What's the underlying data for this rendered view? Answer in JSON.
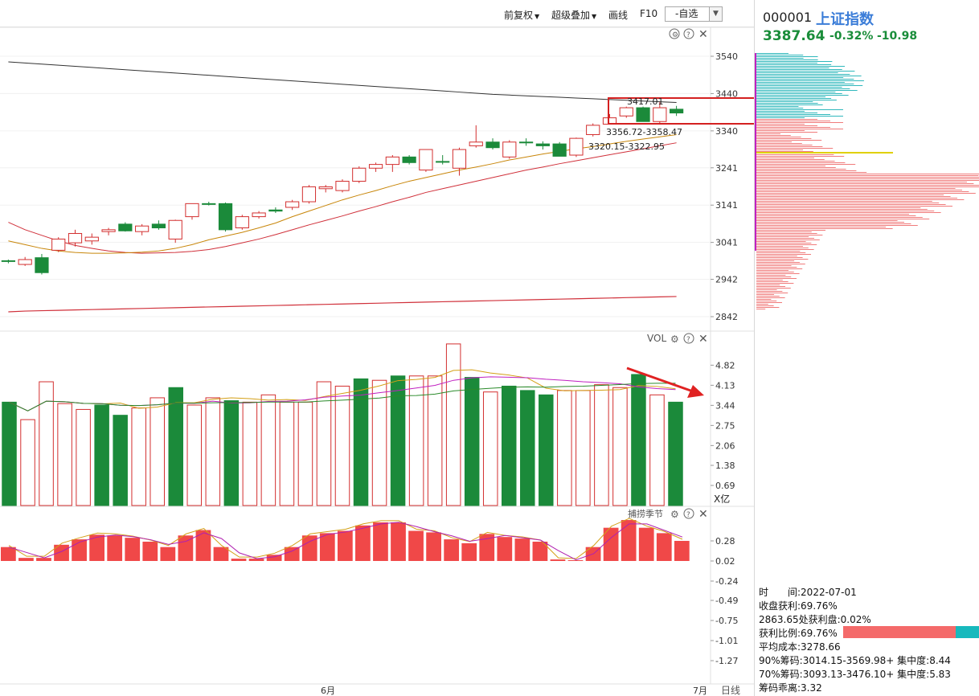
{
  "toolbar": {
    "restore": "前复权",
    "overlay": "超级叠加",
    "draw": "画线",
    "f10": "F10",
    "watchlist": "-自选"
  },
  "stock": {
    "code": "000001",
    "name": "上证指数",
    "price": "3387.64",
    "pct": "-0.32%",
    "change": "-10.98"
  },
  "panels": {
    "vol_title": "VOL",
    "vol_unit": "X亿",
    "osc_title": "捕捞季节",
    "period": "日线"
  },
  "chart_data": [
    {
      "type": "candlestick",
      "y_ticks": [
        "3540",
        "3440",
        "3340",
        "3241",
        "3141",
        "3041",
        "2942",
        "2842"
      ],
      "annotations": [
        "3417.01",
        "3356.72-3358.47",
        "3320.15-3322.95"
      ],
      "x_labels": [
        "6月",
        "7月"
      ],
      "ohlc": [
        [
          2990,
          2995,
          2985,
          2992,
          "g"
        ],
        [
          2982,
          3002,
          2978,
          2995,
          "r"
        ],
        [
          3000,
          3010,
          2955,
          2960,
          "g"
        ],
        [
          3020,
          3055,
          3015,
          3050,
          "r"
        ],
        [
          3040,
          3075,
          3030,
          3065,
          "r"
        ],
        [
          3045,
          3065,
          3035,
          3055,
          "r"
        ],
        [
          3070,
          3080,
          3060,
          3075,
          "r"
        ],
        [
          3090,
          3095,
          3070,
          3072,
          "g"
        ],
        [
          3070,
          3090,
          3060,
          3085,
          "r"
        ],
        [
          3090,
          3100,
          3075,
          3080,
          "g"
        ],
        [
          3050,
          3102,
          3040,
          3100,
          "r"
        ],
        [
          3110,
          3145,
          3102,
          3145,
          "r"
        ],
        [
          3145,
          3150,
          3140,
          3143,
          "g"
        ],
        [
          3145,
          3148,
          3070,
          3075,
          "g"
        ],
        [
          3080,
          3115,
          3075,
          3110,
          "r"
        ],
        [
          3110,
          3125,
          3105,
          3120,
          "r"
        ],
        [
          3125,
          3135,
          3120,
          3128,
          "g"
        ],
        [
          3135,
          3155,
          3128,
          3150,
          "r"
        ],
        [
          3150,
          3195,
          3145,
          3190,
          "r"
        ],
        [
          3185,
          3195,
          3175,
          3190,
          "r"
        ],
        [
          3180,
          3210,
          3175,
          3205,
          "r"
        ],
        [
          3205,
          3245,
          3200,
          3240,
          "r"
        ],
        [
          3240,
          3255,
          3230,
          3250,
          "r"
        ],
        [
          3250,
          3275,
          3230,
          3270,
          "r"
        ],
        [
          3270,
          3275,
          3250,
          3255,
          "g"
        ],
        [
          3235,
          3290,
          3230,
          3290,
          "r"
        ],
        [
          3258,
          3275,
          3250,
          3258,
          "g"
        ],
        [
          3240,
          3295,
          3220,
          3290,
          "r"
        ],
        [
          3300,
          3355,
          3295,
          3310,
          "r"
        ],
        [
          3310,
          3320,
          3290,
          3295,
          "g"
        ],
        [
          3270,
          3315,
          3265,
          3310,
          "r"
        ],
        [
          3310,
          3320,
          3300,
          3308,
          "g"
        ],
        [
          3305,
          3312,
          3290,
          3300,
          "g"
        ],
        [
          3305,
          3310,
          3272,
          3272,
          "g"
        ],
        [
          3275,
          3322,
          3270,
          3320,
          "r"
        ],
        [
          3330,
          3360,
          3325,
          3355,
          "r"
        ],
        [
          3358,
          3385,
          3357,
          3375,
          "r"
        ],
        [
          3380,
          3405,
          3375,
          3402,
          "r"
        ],
        [
          3402,
          3405,
          3365,
          3365,
          "g"
        ],
        [
          3365,
          3417,
          3360,
          3402,
          "r"
        ],
        [
          3398,
          3407,
          3380,
          3388,
          "g"
        ]
      ],
      "ma5": [
        3045,
        3035,
        3025,
        3018,
        3014,
        3012,
        3012,
        3013,
        3015,
        3018,
        3025,
        3035,
        3048,
        3058,
        3068,
        3080,
        3093,
        3110,
        3125,
        3140,
        3155,
        3168,
        3180,
        3193,
        3205,
        3215,
        3225,
        3235,
        3243,
        3252,
        3262,
        3270,
        3278,
        3285,
        3292,
        3298,
        3305,
        3312,
        3318,
        3324,
        3330
      ],
      "ma10": [
        3095,
        3075,
        3060,
        3045,
        3033,
        3025,
        3018,
        3014,
        3012,
        3013,
        3014,
        3017,
        3022,
        3030,
        3040,
        3050,
        3062,
        3075,
        3088,
        3100,
        3112,
        3125,
        3137,
        3150,
        3162,
        3175,
        3185,
        3195,
        3205,
        3215,
        3225,
        3235,
        3243,
        3252,
        3260,
        3268,
        3276,
        3284,
        3292,
        3300,
        3308
      ],
      "ma60": [
        2855,
        2857,
        2858,
        2859,
        2860,
        2861,
        2862,
        2863,
        2864,
        2865,
        2866,
        2867,
        2868,
        2869,
        2870,
        2871,
        2872,
        2873,
        2874,
        2875,
        2876,
        2877,
        2878,
        2879,
        2880,
        2881,
        2882,
        2883,
        2884,
        2885,
        2886,
        2887,
        2888,
        2889,
        2890,
        2891,
        2892,
        2893,
        2894,
        2895,
        2896
      ],
      "ma250": [
        3525,
        3522,
        3519,
        3516,
        3513,
        3510,
        3507,
        3504,
        3501,
        3498,
        3495,
        3492,
        3489,
        3486,
        3483,
        3480,
        3477,
        3474,
        3471,
        3468,
        3465,
        3462,
        3459,
        3456,
        3453,
        3450,
        3447,
        3444,
        3441,
        3438,
        3436,
        3434,
        3432,
        3430,
        3428,
        3426,
        3424,
        3422,
        3420,
        3418,
        3416
      ]
    },
    {
      "type": "bar",
      "name": "VOL",
      "y_ticks": [
        "4.82",
        "4.13",
        "3.44",
        "2.75",
        "2.06",
        "1.38",
        "0.69"
      ],
      "values": [
        3.55,
        2.95,
        4.25,
        3.5,
        3.3,
        3.45,
        3.1,
        3.35,
        3.7,
        4.05,
        3.45,
        3.7,
        3.6,
        3.55,
        3.8,
        3.55,
        3.55,
        4.25,
        4.1,
        4.35,
        4.3,
        4.45,
        4.45,
        4.45,
        5.55,
        4.4,
        3.9,
        4.1,
        3.95,
        3.8,
        3.95,
        3.95,
        4.15,
        4.05,
        4.5,
        3.8,
        3.55
      ],
      "colors": [
        "g",
        "r",
        "r",
        "r",
        "r",
        "g",
        "g",
        "r",
        "r",
        "g",
        "r",
        "r",
        "g",
        "r",
        "r",
        "r",
        "r",
        "r",
        "r",
        "g",
        "r",
        "g",
        "r",
        "r",
        "r",
        "g",
        "r",
        "g",
        "g",
        "g",
        "r",
        "r",
        "r",
        "r",
        "g",
        "r",
        "g"
      ]
    },
    {
      "type": "bar",
      "name": "捕捞季节",
      "y_ticks": [
        "0.28",
        "0.02",
        "-0.24",
        "-0.49",
        "-0.75",
        "-1.01",
        "-1.27"
      ],
      "values": [
        0.2,
        0.06,
        0.06,
        0.23,
        0.3,
        0.36,
        0.35,
        0.32,
        0.27,
        0.2,
        0.35,
        0.42,
        0.2,
        0.05,
        0.05,
        0.1,
        0.2,
        0.35,
        0.38,
        0.41,
        0.48,
        0.52,
        0.52,
        0.41,
        0.39,
        0.3,
        0.25,
        0.37,
        0.33,
        0.31,
        0.27,
        0.04,
        0.03,
        0.2,
        0.45,
        0.55,
        0.45,
        0.38,
        0.28
      ]
    }
  ],
  "chip_dist": {
    "info": {
      "time": "时　　间:2022-07-01",
      "close_profit": "收盘获利:69.76%",
      "profit_at": "2863.65处获利盘:0.02%",
      "profit_ratio": "获利比例:69.76%",
      "avg_cost": "平均成本:3278.66",
      "range90": "90%筹码:3014.15-3569.98+ 集中度:8.44",
      "range70": "70%筹码:3093.13-3476.10+ 集中度:5.83",
      "deviation": "筹码乖离:3.32"
    },
    "profit_fraction": 0.6976
  },
  "colors": {
    "up": "#d32f2f",
    "down": "#1b8a3a",
    "ma5": "#c8860a",
    "ma10": "#d0303a",
    "ma60": "#d0303a",
    "ma250": "#333333",
    "chip_up": "#f07b7b",
    "chip_down": "#30b8bc",
    "annotation": "#d42020"
  }
}
